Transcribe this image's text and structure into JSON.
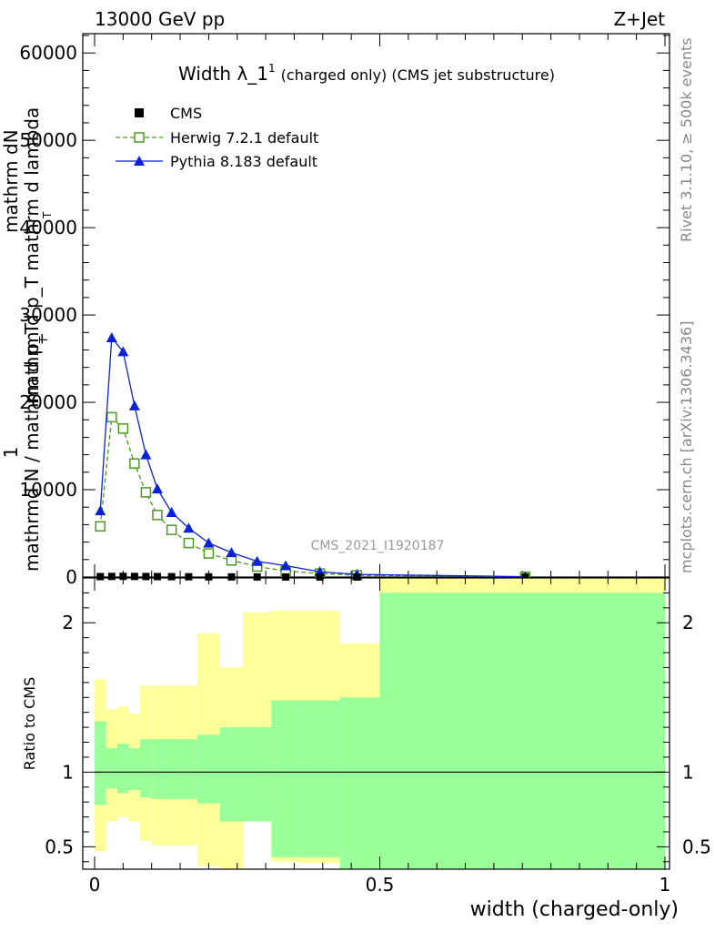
{
  "header": {
    "left": "13000 GeV pp",
    "right": "Z+Jet"
  },
  "side_labels": {
    "rivet": "Rivet 3.1.10, ≥ 500k events",
    "mcplots": "mcplots.cern.ch [arXiv:1306.3436]"
  },
  "chart_data": [
    {
      "type": "line",
      "title": "Width λ_1",
      "title_sup": "1",
      "subtitle": "(charged only) (CMS jet substructure)",
      "watermark": "CMS_2021_I1920187",
      "ylabel_top": "1",
      "ylabel_bottom": "mathrmd N / mathrm d p_T",
      "ylabel_rotated": [
        "mathrm dN",
        "mathrm d p_T mathrm d lambda"
      ],
      "ylabel_sub": [
        "T",
        "T"
      ],
      "xlim": [
        0,
        1
      ],
      "ylim": [
        0,
        60000
      ],
      "yticks": [
        {
          "v": 0,
          "label": "0"
        },
        {
          "v": 10000,
          "label": "10000"
        },
        {
          "v": 20000,
          "label": "20000"
        },
        {
          "v": 30000,
          "label": "30000"
        },
        {
          "v": 40000,
          "label": "40000"
        },
        {
          "v": 50000,
          "label": "50000"
        },
        {
          "v": 60000,
          "label": "60000"
        }
      ],
      "legend": [
        {
          "name": "CMS",
          "color": "#000000",
          "style": "square"
        },
        {
          "name": "Herwig 7.2.1 default",
          "color": "#4b9a1f",
          "style": "open-square-dashed"
        },
        {
          "name": "Pythia 8.183 default",
          "color": "#0a22d6",
          "style": "triangle-solid"
        }
      ],
      "series": [
        {
          "name": "CMS",
          "x": [
            0.01,
            0.03,
            0.05,
            0.07,
            0.09,
            0.11,
            0.135,
            0.165,
            0.2,
            0.24,
            0.285,
            0.335,
            0.395,
            0.46,
            0.755
          ],
          "y": [
            50,
            70,
            80,
            70,
            60,
            50,
            40,
            30,
            20,
            15,
            10,
            8,
            5,
            3,
            1
          ]
        },
        {
          "name": "Herwig 7.2.1 default",
          "x": [
            0.01,
            0.03,
            0.05,
            0.07,
            0.09,
            0.11,
            0.135,
            0.165,
            0.2,
            0.24,
            0.285,
            0.335,
            0.395,
            0.46,
            0.755
          ],
          "y": [
            5800,
            18300,
            17000,
            13000,
            9700,
            7100,
            5400,
            3900,
            2700,
            1900,
            1200,
            700,
            400,
            200,
            30
          ]
        },
        {
          "name": "Pythia 8.183 default",
          "x": [
            0.01,
            0.03,
            0.05,
            0.07,
            0.09,
            0.11,
            0.135,
            0.165,
            0.2,
            0.24,
            0.285,
            0.335,
            0.395,
            0.46,
            0.755
          ],
          "y": [
            7600,
            27400,
            25800,
            19600,
            14000,
            10100,
            7400,
            5600,
            3900,
            2800,
            1800,
            1300,
            600,
            300,
            40
          ]
        }
      ]
    },
    {
      "type": "area",
      "ylabel": "Ratio to CMS",
      "xlabel": "width (charged-only)",
      "xlim": [
        0,
        1
      ],
      "ylim": [
        0.35,
        2.3
      ],
      "reference": 1,
      "xticks": [
        {
          "v": 0,
          "label": "0"
        },
        {
          "v": 0.5,
          "label": "0.5"
        },
        {
          "v": 1,
          "label": "1"
        }
      ],
      "yticks": [
        {
          "v": 0.5,
          "label": "0.5"
        },
        {
          "v": 1,
          "label": "1"
        },
        {
          "v": 2,
          "label": "2"
        }
      ],
      "bands": {
        "edges": [
          0.0,
          0.02,
          0.04,
          0.06,
          0.08,
          0.1,
          0.12,
          0.15,
          0.18,
          0.22,
          0.26,
          0.31,
          0.36,
          0.43,
          0.5,
          1.0
        ],
        "green_colour": "#99ff99",
        "yellow_colour": "#ffff99",
        "green_hi": [
          1.34,
          1.16,
          1.19,
          1.16,
          1.22,
          1.22,
          1.22,
          1.22,
          1.25,
          1.3,
          1.3,
          1.48,
          1.48,
          1.5,
          2.2
        ],
        "green_lo": [
          0.78,
          0.89,
          0.86,
          0.88,
          0.83,
          0.82,
          0.82,
          0.82,
          0.79,
          0.67,
          0.67,
          0.43,
          0.43,
          0.35,
          0.35
        ],
        "yellow_hi": [
          1.62,
          1.42,
          1.44,
          1.39,
          1.58,
          1.58,
          1.58,
          1.58,
          1.93,
          1.7,
          2.07,
          2.08,
          2.08,
          1.86,
          2.3
        ],
        "yellow_lo": [
          0.47,
          0.67,
          0.7,
          0.67,
          0.54,
          0.51,
          0.51,
          0.51,
          0.37,
          0.35,
          0.77,
          0.4,
          0.39,
          0.63,
          0.35
        ]
      }
    }
  ]
}
